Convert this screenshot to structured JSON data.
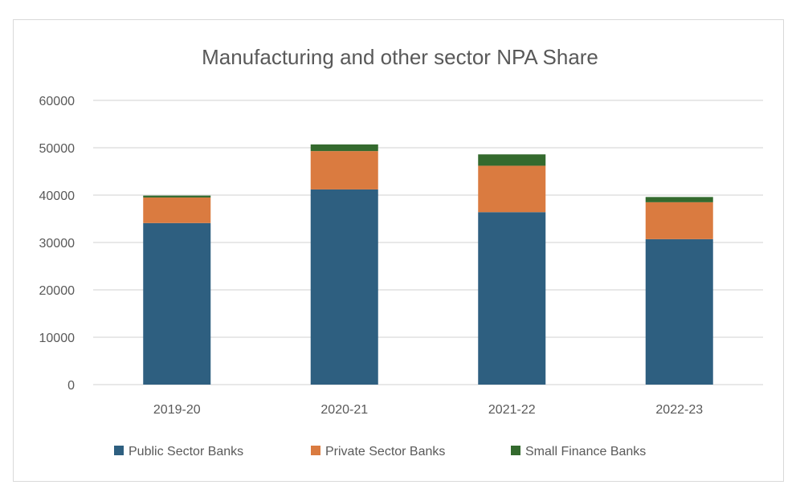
{
  "chart_data": {
    "type": "bar",
    "stacked": true,
    "title": "Manufacturing and other sector NPA Share",
    "xlabel": "",
    "ylabel": "",
    "categories": [
      "2019-20",
      "2020-21",
      "2021-22",
      "2022-23"
    ],
    "series": [
      {
        "name": "Public Sector Banks",
        "color": "#2E5F80",
        "values": [
          34100,
          41200,
          36400,
          30700
        ]
      },
      {
        "name": "Private Sector Banks",
        "color": "#DA7B40",
        "values": [
          5400,
          8100,
          9800,
          7800
        ]
      },
      {
        "name": "Small Finance Banks",
        "color": "#346A2E",
        "values": [
          400,
          1400,
          2400,
          1100
        ]
      }
    ],
    "ylim": [
      0,
      60000
    ],
    "yticks": [
      0,
      10000,
      20000,
      30000,
      40000,
      50000,
      60000
    ],
    "ytick_labels": [
      "0",
      "10000",
      "20000",
      "30000",
      "40000",
      "50000",
      "60000"
    ],
    "grid": true,
    "legend_position": "bottom"
  }
}
